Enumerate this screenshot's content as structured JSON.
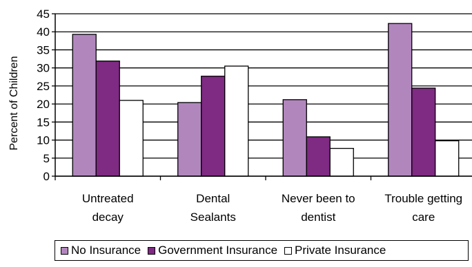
{
  "chart_data": {
    "type": "bar",
    "ylabel": "Percent of Children",
    "ylim": [
      0,
      45
    ],
    "yticks": [
      "0",
      "5",
      "10",
      "15",
      "20",
      "25",
      "30",
      "35",
      "40",
      "45"
    ],
    "grid": true,
    "legend_position": "bottom",
    "categories": [
      [
        "Untreated",
        "decay"
      ],
      [
        "Dental",
        "Sealants"
      ],
      [
        "Never been to",
        "dentist"
      ],
      [
        "Trouble getting",
        "care"
      ]
    ],
    "series": [
      {
        "name": "No Insurance",
        "color": "#b186bd",
        "values": [
          39.3,
          20.4,
          21.2,
          42.3
        ]
      },
      {
        "name": "Government Insurance",
        "color": "#7f2a83",
        "values": [
          31.9,
          27.7,
          10.9,
          24.4
        ]
      },
      {
        "name": "Private Insurance",
        "color": "#ffffff",
        "values": [
          21.0,
          30.5,
          7.7,
          9.8
        ]
      }
    ]
  }
}
